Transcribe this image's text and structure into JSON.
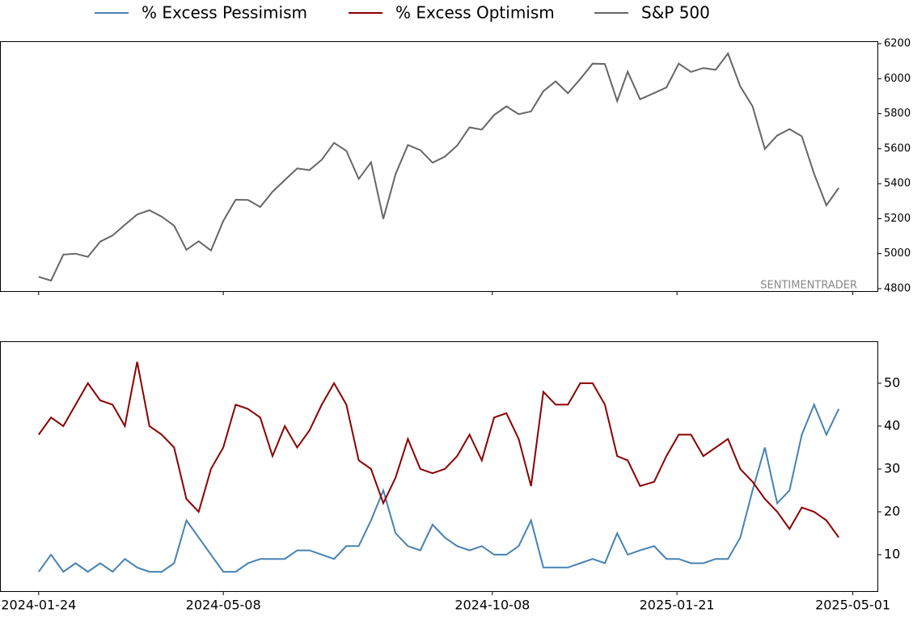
{
  "chart_data": [
    {
      "type": "line",
      "watermark": "SENTIMENTRADER",
      "x": [
        "2024-01-24",
        "2024-01-31",
        "2024-02-07",
        "2024-02-14",
        "2024-02-21",
        "2024-02-28",
        "2024-03-06",
        "2024-03-13",
        "2024-03-20",
        "2024-03-27",
        "2024-04-03",
        "2024-04-10",
        "2024-04-17",
        "2024-04-24",
        "2024-05-01",
        "2024-05-08",
        "2024-05-15",
        "2024-05-22",
        "2024-05-29",
        "2024-06-05",
        "2024-06-12",
        "2024-06-19",
        "2024-06-26",
        "2024-07-03",
        "2024-07-10",
        "2024-07-17",
        "2024-07-24",
        "2024-07-31",
        "2024-08-07",
        "2024-08-14",
        "2024-08-21",
        "2024-08-28",
        "2024-09-04",
        "2024-09-11",
        "2024-09-18",
        "2024-09-25",
        "2024-10-02",
        "2024-10-09",
        "2024-10-16",
        "2024-10-23",
        "2024-10-30",
        "2024-11-06",
        "2024-11-13",
        "2024-11-20",
        "2024-11-27",
        "2024-12-04",
        "2024-12-11",
        "2024-12-18",
        "2024-12-24",
        "2024-12-31",
        "2025-01-08",
        "2025-01-15",
        "2025-01-22",
        "2025-01-29",
        "2025-02-05",
        "2025-02-12",
        "2025-02-19",
        "2025-02-26",
        "2025-03-05",
        "2025-03-12",
        "2025-03-19",
        "2025-03-26",
        "2025-04-02",
        "2025-04-09",
        "2025-04-16",
        "2025-04-23"
      ],
      "series": [
        {
          "name": "S&P 500",
          "color": "#666666",
          "values": [
            4868,
            4846,
            4995,
            5000,
            4982,
            5069,
            5104,
            5165,
            5224,
            5248,
            5211,
            5160,
            5022,
            5071,
            5018,
            5187,
            5308,
            5307,
            5267,
            5354,
            5421,
            5487,
            5478,
            5537,
            5633,
            5588,
            5427,
            5522,
            5199,
            5455,
            5621,
            5592,
            5520,
            5554,
            5618,
            5722,
            5709,
            5792,
            5842,
            5797,
            5813,
            5929,
            5985,
            5917,
            5998,
            6086,
            6084,
            5872,
            6040,
            5882,
            5918,
            5950,
            6086,
            6039,
            6061,
            6051,
            6144,
            5956,
            5842,
            5599,
            5675,
            5712,
            5671,
            5457,
            5276,
            5376
          ]
        }
      ],
      "xlim": [
        "2024-01-02",
        "2025-05-15"
      ],
      "xticks": [
        "2024-01-24",
        "2024-05-08",
        "2024-10-08",
        "2025-01-21",
        "2025-05-01"
      ],
      "ylim": [
        4786,
        6214
      ],
      "yticks": [
        4800,
        5000,
        5200,
        5400,
        5600,
        5800,
        6000,
        6200
      ]
    },
    {
      "type": "line",
      "x": [
        "2024-01-24",
        "2024-01-31",
        "2024-02-07",
        "2024-02-14",
        "2024-02-21",
        "2024-02-28",
        "2024-03-06",
        "2024-03-13",
        "2024-03-20",
        "2024-03-27",
        "2024-04-03",
        "2024-04-10",
        "2024-04-17",
        "2024-04-24",
        "2024-05-01",
        "2024-05-08",
        "2024-05-15",
        "2024-05-22",
        "2024-05-29",
        "2024-06-05",
        "2024-06-12",
        "2024-06-19",
        "2024-06-26",
        "2024-07-03",
        "2024-07-10",
        "2024-07-17",
        "2024-07-24",
        "2024-07-31",
        "2024-08-07",
        "2024-08-14",
        "2024-08-21",
        "2024-08-28",
        "2024-09-04",
        "2024-09-11",
        "2024-09-18",
        "2024-09-25",
        "2024-10-02",
        "2024-10-09",
        "2024-10-16",
        "2024-10-23",
        "2024-10-30",
        "2024-11-06",
        "2024-11-13",
        "2024-11-20",
        "2024-11-27",
        "2024-12-04",
        "2024-12-11",
        "2024-12-18",
        "2024-12-24",
        "2024-12-31",
        "2025-01-08",
        "2025-01-15",
        "2025-01-22",
        "2025-01-29",
        "2025-02-05",
        "2025-02-12",
        "2025-02-19",
        "2025-02-26",
        "2025-03-05",
        "2025-03-12",
        "2025-03-19",
        "2025-03-26",
        "2025-04-02",
        "2025-04-09",
        "2025-04-16",
        "2025-04-23"
      ],
      "series": [
        {
          "name": "% Excess Pessimism",
          "color": "#4682b4",
          "values": [
            6,
            10,
            6,
            8,
            6,
            8,
            6,
            9,
            7,
            6,
            6,
            8,
            18,
            14,
            10,
            6,
            6,
            8,
            9,
            9,
            9,
            11,
            11,
            10,
            9,
            12,
            12,
            18,
            25,
            15,
            12,
            11,
            17,
            14,
            12,
            11,
            12,
            10,
            10,
            12,
            18,
            7,
            7,
            7,
            8,
            9,
            8,
            15,
            10,
            11,
            12,
            9,
            9,
            8,
            8,
            9,
            9,
            14,
            25,
            35,
            22,
            25,
            38,
            45,
            38,
            44
          ]
        },
        {
          "name": "% Excess Optimism",
          "color": "#8b0000",
          "values": [
            38,
            42,
            40,
            45,
            50,
            46,
            45,
            40,
            55,
            40,
            38,
            35,
            23,
            20,
            30,
            35,
            45,
            44,
            42,
            33,
            40,
            35,
            39,
            45,
            50,
            45,
            32,
            30,
            22,
            28,
            37,
            30,
            29,
            30,
            33,
            38,
            32,
            42,
            43,
            37,
            26,
            48,
            45,
            45,
            50,
            50,
            45,
            33,
            32,
            26,
            27,
            33,
            38,
            38,
            33,
            35,
            37,
            30,
            27,
            23,
            20,
            16,
            21,
            20,
            18,
            14
          ]
        }
      ],
      "xlim": [
        "2024-01-02",
        "2025-05-15"
      ],
      "xticks": [
        "2024-01-24",
        "2024-05-08",
        "2024-10-08",
        "2025-01-21",
        "2025-05-01"
      ],
      "ylim": [
        1.5,
        59.8
      ],
      "yticks": [
        10,
        20,
        30,
        40,
        50
      ]
    }
  ]
}
